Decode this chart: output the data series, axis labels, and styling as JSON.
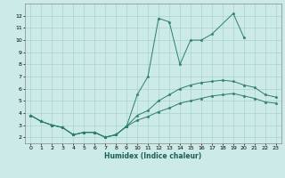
{
  "title": "",
  "xlabel": "Humidex (Indice chaleur)",
  "ylabel": "",
  "bg_color": "#cceae7",
  "grid_color": "#aad4d0",
  "line_color": "#2d7d6e",
  "marker_color": "#2d7d6e",
  "xlim": [
    -0.5,
    23.5
  ],
  "ylim": [
    1.5,
    13.0
  ],
  "xticks": [
    0,
    1,
    2,
    3,
    4,
    5,
    6,
    7,
    8,
    9,
    10,
    11,
    12,
    13,
    14,
    15,
    16,
    17,
    18,
    19,
    20,
    21,
    22,
    23
  ],
  "yticks": [
    2,
    3,
    4,
    5,
    6,
    7,
    8,
    9,
    10,
    11,
    12
  ],
  "series": [
    {
      "x": [
        0,
        1,
        2,
        3,
        4,
        5,
        6,
        7,
        8,
        9,
        10,
        11,
        12,
        13,
        14,
        15,
        16,
        17,
        19,
        20
      ],
      "y": [
        3.8,
        3.3,
        3.0,
        2.8,
        2.2,
        2.4,
        2.4,
        2.0,
        2.2,
        2.9,
        5.5,
        7.0,
        11.8,
        11.5,
        8.0,
        10.0,
        10.0,
        10.5,
        12.2,
        10.2
      ]
    },
    {
      "x": [
        0,
        1,
        2,
        3,
        4,
        5,
        6,
        7,
        8,
        9,
        10,
        11,
        12,
        13,
        14,
        15,
        16,
        17,
        18,
        19,
        20,
        21,
        22,
        23
      ],
      "y": [
        3.8,
        3.3,
        3.0,
        2.8,
        2.2,
        2.4,
        2.4,
        2.0,
        2.2,
        2.9,
        3.8,
        4.2,
        5.0,
        5.5,
        6.0,
        6.3,
        6.5,
        6.6,
        6.7,
        6.6,
        6.3,
        6.1,
        5.5,
        5.3
      ]
    },
    {
      "x": [
        0,
        1,
        2,
        3,
        4,
        5,
        6,
        7,
        8,
        9,
        10,
        11,
        12,
        13,
        14,
        15,
        16,
        17,
        18,
        19,
        20,
        21,
        22,
        23
      ],
      "y": [
        3.8,
        3.3,
        3.0,
        2.8,
        2.2,
        2.4,
        2.4,
        2.0,
        2.2,
        2.9,
        3.4,
        3.7,
        4.1,
        4.4,
        4.8,
        5.0,
        5.2,
        5.4,
        5.5,
        5.6,
        5.4,
        5.2,
        4.9,
        4.8
      ]
    }
  ]
}
